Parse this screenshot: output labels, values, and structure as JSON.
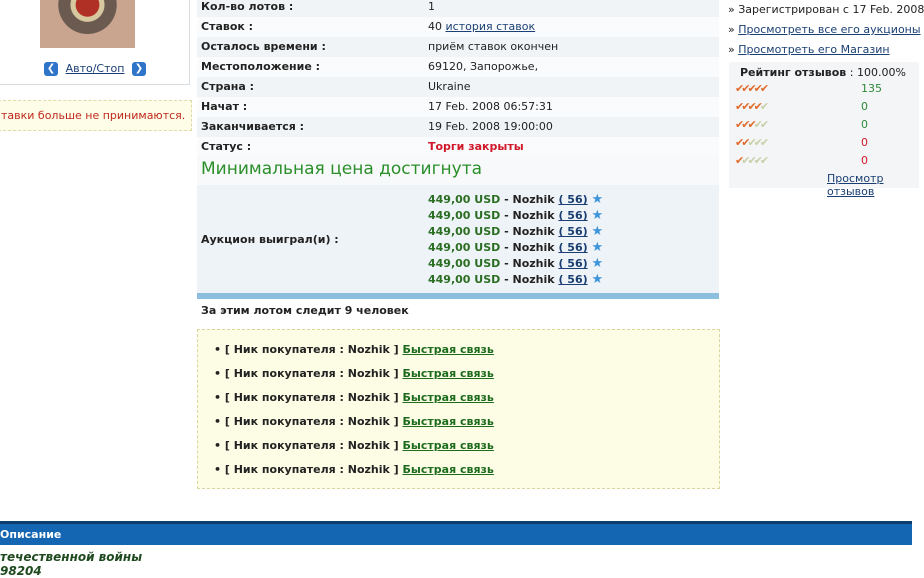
{
  "left": {
    "nav_label": "Авто/Стоп",
    "notice": "тавки больше не принимаются."
  },
  "details": [
    {
      "label": "Кол-во лотов :",
      "value": "1"
    },
    {
      "label": "Ставок :",
      "value": "40",
      "link": "история ставок"
    },
    {
      "label": "Осталось времени :",
      "value": "приём ставок окончен"
    },
    {
      "label": "Местоположение :",
      "value": "69120, Запорожье,"
    },
    {
      "label": "Страна :",
      "value": "Ukraine"
    },
    {
      "label": "Начат :",
      "value": "17 Feb. 2008 06:57:31"
    },
    {
      "label": "Заканчивается :",
      "value": "19 Feb. 2008 19:00:00"
    },
    {
      "label": "Статус :",
      "value": "Торги закрыты",
      "status_color": "#d0182a"
    }
  ],
  "reserve_heading": "Минимальная цена достигнута",
  "winners": {
    "label": "Аукцион выиграл(и) :",
    "items": [
      {
        "price": "449,00 USD",
        "sep": " - ",
        "name": "Nozhik",
        "rating": "( 56)"
      },
      {
        "price": "449,00 USD",
        "sep": " - ",
        "name": "Nozhik",
        "rating": "( 56)"
      },
      {
        "price": "449,00 USD",
        "sep": " - ",
        "name": "Nozhik",
        "rating": "( 56)"
      },
      {
        "price": "449,00 USD",
        "sep": " - ",
        "name": "Nozhik",
        "rating": "( 56)"
      },
      {
        "price": "449,00 USD",
        "sep": " - ",
        "name": "Nozhik",
        "rating": "( 56)"
      },
      {
        "price": "449,00 USD",
        "sep": " - ",
        "name": "Nozhik",
        "rating": "( 56)"
      }
    ]
  },
  "watchers": "За этим лотом следит 9 человек",
  "buyers": [
    {
      "text": "• [ Ник покупателя : Nozhik ]",
      "link": "Быстрая связь"
    },
    {
      "text": "• [ Ник покупателя : Nozhik ]",
      "link": "Быстрая связь"
    },
    {
      "text": "• [ Ник покупателя : Nozhik ]",
      "link": "Быстрая связь"
    },
    {
      "text": "• [ Ник покупателя : Nozhik ]",
      "link": "Быстрая связь"
    },
    {
      "text": "• [ Ник покупателя : Nozhik ]",
      "link": "Быстрая связь"
    },
    {
      "text": "• [ Ник покупателя : Nozhik ]",
      "link": "Быстрая связь"
    }
  ],
  "description": {
    "header": "Описание",
    "line1": "течественной войны",
    "line2": "98204"
  },
  "seller": {
    "registered": "Зарегистрирован с 17 Feb. 2008",
    "all_auctions": "Просмотреть все его аукционы",
    "store": "Просмотреть его Магазин",
    "rating_label": "Рейтинг отзывов",
    "rating_sep": " : ",
    "rating_value": "100.00%",
    "rows": [
      {
        "stars": 5,
        "count": "135",
        "color": "#2e8a3a"
      },
      {
        "stars": 4,
        "count": "0",
        "color": "#2e8a3a"
      },
      {
        "stars": 3,
        "count": "0",
        "color": "#2e8a3a"
      },
      {
        "stars": 2,
        "count": "0",
        "color": "#d0182a"
      },
      {
        "stars": 1,
        "count": "0",
        "color": "#d0182a"
      }
    ],
    "feedback_link": "Просмотр отзывов"
  }
}
